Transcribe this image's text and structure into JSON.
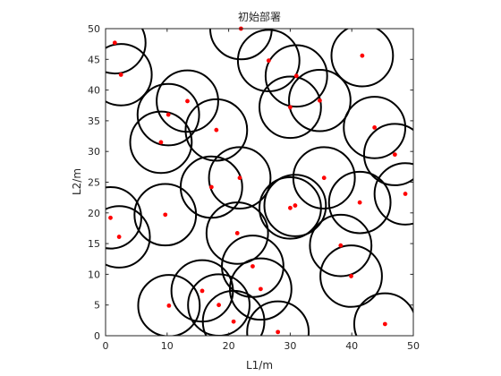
{
  "chart_data": {
    "type": "scatter",
    "title": "初始部署",
    "xlabel": "L1/m",
    "ylabel": "L2/m",
    "xlim": [
      0,
      50
    ],
    "ylim": [
      0,
      50
    ],
    "xticks": [
      0,
      10,
      20,
      30,
      40,
      50
    ],
    "yticks": [
      0,
      5,
      10,
      15,
      20,
      25,
      30,
      35,
      40,
      45,
      50
    ],
    "grid": false,
    "coverage_radius": 5,
    "colors": {
      "node": "#ff0000",
      "circle": "#000000",
      "axes": "#262626"
    },
    "nodes": [
      [
        1.5,
        47.7
      ],
      [
        2.5,
        42.5
      ],
      [
        22.0,
        50.0
      ],
      [
        26.5,
        44.8
      ],
      [
        31.0,
        42.3
      ],
      [
        41.7,
        45.6
      ],
      [
        13.3,
        38.2
      ],
      [
        10.2,
        36.0
      ],
      [
        9.0,
        31.5
      ],
      [
        18.0,
        33.5
      ],
      [
        30.0,
        37.2
      ],
      [
        34.8,
        38.3
      ],
      [
        43.7,
        33.9
      ],
      [
        47.0,
        29.5
      ],
      [
        35.5,
        25.7
      ],
      [
        21.8,
        25.7
      ],
      [
        17.2,
        24.2
      ],
      [
        48.7,
        23.1
      ],
      [
        41.3,
        21.7
      ],
      [
        30.8,
        21.2
      ],
      [
        30.0,
        20.8
      ],
      [
        0.8,
        19.2
      ],
      [
        9.7,
        19.7
      ],
      [
        2.2,
        16.1
      ],
      [
        21.4,
        16.7
      ],
      [
        38.2,
        14.7
      ],
      [
        23.9,
        11.3
      ],
      [
        39.9,
        9.7
      ],
      [
        15.7,
        7.3
      ],
      [
        25.2,
        7.6
      ],
      [
        10.3,
        4.9
      ],
      [
        18.4,
        5.0
      ],
      [
        20.8,
        2.3
      ],
      [
        28.0,
        0.6
      ],
      [
        45.4,
        1.9
      ]
    ]
  }
}
